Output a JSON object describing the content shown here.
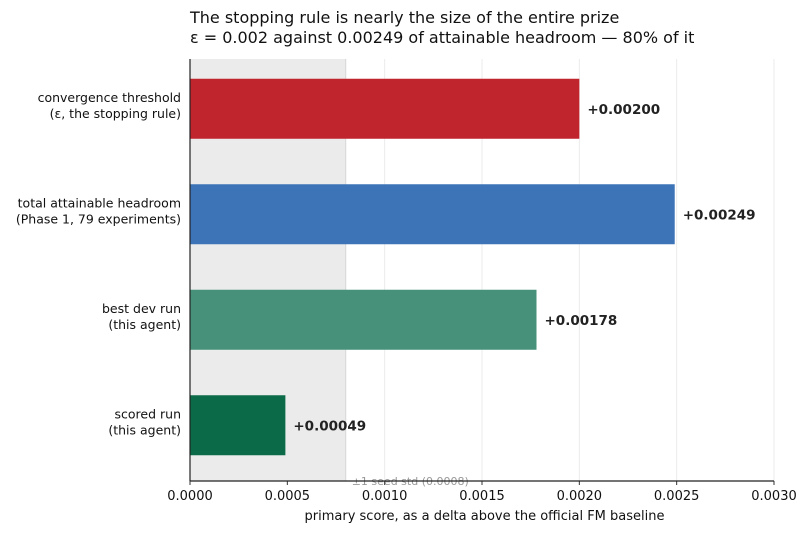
{
  "chart_data": {
    "type": "bar",
    "orientation": "horizontal",
    "title": "The stopping rule is nearly the size of the entire prize",
    "subtitle": "ε = 0.002 against 0.00249 of attainable headroom — 80% of it",
    "xlabel": "primary score, as a delta above the official FM baseline",
    "ylabel": "",
    "xlim": [
      0,
      0.003
    ],
    "xticks": [
      "0.0000",
      "0.0005",
      "0.0010",
      "0.0015",
      "0.0020",
      "0.0025",
      "0.0030"
    ],
    "grid": "vertical",
    "categories": [
      [
        "convergence threshold",
        "(ε, the stopping rule)"
      ],
      [
        "total attainable headroom",
        "(Phase 1, 79 experiments)"
      ],
      [
        "best dev run",
        "(this agent)"
      ],
      [
        "scored run",
        "(this agent)"
      ]
    ],
    "values": [
      0.002,
      0.00249,
      0.00178,
      0.00049
    ],
    "value_labels": [
      "+0.00200",
      "+0.00249",
      "+0.00178",
      "+0.00049"
    ],
    "colors": [
      "#c0242c",
      "#3d74b7",
      "#47917a",
      "#0b6b48"
    ],
    "band": {
      "from": 0,
      "to": 0.0008,
      "label": "±1 seed std (0.0008)",
      "color": "#ebebeb"
    }
  }
}
